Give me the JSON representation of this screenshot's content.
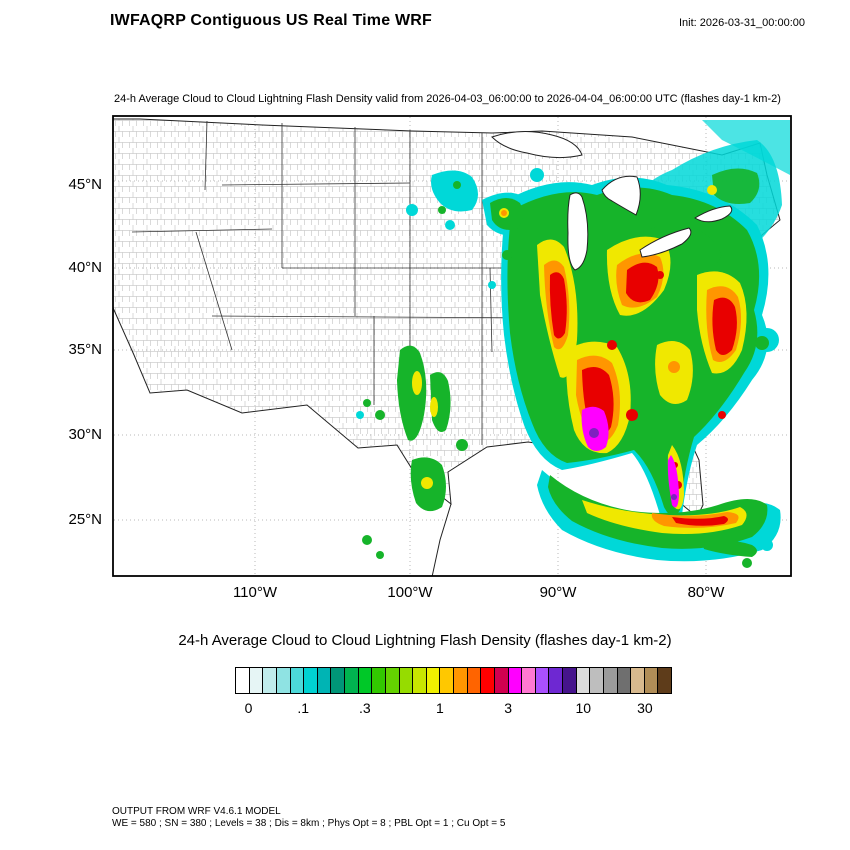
{
  "header": {
    "title": "IWFAQRP Contiguous US Real Time WRF",
    "init": "Init: 2026-03-31_00:00:00"
  },
  "map": {
    "subtitle": "24-h Average Cloud to Cloud Lightning Flash Density valid from 2026-04-03_06:00:00 to 2026-04-04_06:00:00 UTC   (flashes day-1 km-2)",
    "lat_labels": [
      "45°N",
      "40°N",
      "35°N",
      "30°N",
      "25°N"
    ],
    "lon_labels": [
      "110°W",
      "100°W",
      "90°W",
      "80°W"
    ]
  },
  "colorbar": {
    "title": "24-h Average Cloud to Cloud Lightning Flash Density  (flashes day-1 km-2)",
    "colors": [
      "#ffffff",
      "#e6f5f5",
      "#c0ecec",
      "#8fe3e3",
      "#4cd9d9",
      "#00d2d2",
      "#00b4b4",
      "#009678",
      "#00b450",
      "#00c828",
      "#32c800",
      "#64d200",
      "#96dc00",
      "#c8e600",
      "#f0f000",
      "#ffc800",
      "#ff9600",
      "#ff6400",
      "#ff0000",
      "#d20050",
      "#ff00ff",
      "#ff78d2",
      "#aa50ff",
      "#6e28d2",
      "#46148c",
      "#dcdcdc",
      "#bebebe",
      "#9b9b9b",
      "#6f6f6f",
      "#d7b98e",
      "#b08d57",
      "#5e3c1a"
    ],
    "ticks": [
      {
        "label": "0",
        "pos": 0.031
      },
      {
        "label": ".1",
        "pos": 0.156
      },
      {
        "label": ".3",
        "pos": 0.297
      },
      {
        "label": "1",
        "pos": 0.469
      },
      {
        "label": "3",
        "pos": 0.625
      },
      {
        "label": "10",
        "pos": 0.797
      },
      {
        "label": "30",
        "pos": 0.938
      }
    ]
  },
  "footer": {
    "line1": "OUTPUT FROM WRF V4.6.1 MODEL",
    "line2": "WE = 580 ; SN = 380 ; Levels = 38 ; Dis = 8km ; Phys Opt = 8 ; PBL Opt = 1 ; Cu Opt = 5"
  },
  "chart_data": {
    "type": "heatmap",
    "variable": "24-h Average Cloud to Cloud Lightning Flash Density",
    "units": "flashes day-1 km-2",
    "model": "WRF V4.6.1",
    "init_time": "2026-03-31_00:00:00",
    "valid_from": "2026-04-03_06:00:00",
    "valid_to": "2026-04-04_06:00:00 UTC",
    "domain": "Contiguous US (Lambert conformal, county outlines)",
    "lat_ticks": [
      "45°N",
      "40°N",
      "35°N",
      "30°N",
      "25°N"
    ],
    "lon_ticks": [
      "110°W",
      "100°W",
      "90°W",
      "80°W"
    ],
    "scale_levels": [
      0,
      0.1,
      0.3,
      1,
      3,
      10,
      30
    ],
    "grid_info": {
      "WE": 580,
      "SN": 380,
      "Levels": 38,
      "Dis": "8km",
      "Phys Opt": 8,
      "PBL Opt": 1,
      "Cu Opt": 5
    },
    "regions": [
      {
        "area": "Lower Mississippi Valley / central Gulf Coast (LA-MS-AL)",
        "density": "3 to >10, maximum (magenta/purple) near Louisiana-Mississippi coast"
      },
      {
        "area": "Tennessee-Kentucky / Ohio Valley arc",
        "density": "1-10 with red cores"
      },
      {
        "area": "Missouri-Arkansas arc",
        "density": "0.3-3 with narrow red core"
      },
      {
        "area": "Appalachians (WV-VA-NC)",
        "density": "1-10, elongated red band"
      },
      {
        "area": "Georgia / Carolinas / Southeast",
        "density": "0.3-3"
      },
      {
        "area": "Florida peninsula",
        "density": "1-10 with magenta-purple streak along west coast"
      },
      {
        "area": "Gulf of Mexico arc into Florida Straits / Bahamas / Cuba",
        "density": "0.3-10, orange-red band south of Florida"
      },
      {
        "area": "Central and South Texas streaks",
        "density": "0.1-1"
      },
      {
        "area": "Upper Midwest / Great Lakes patches",
        "density": "0-0.3 cyan/green specks"
      },
      {
        "area": "Northeast US and offshore New England",
        "density": "0-1 cyan shield with isolated orange-red spots over PA/NY"
      },
      {
        "area": "Western US (west of ~100°W high plains)",
        "density": "0 (no flashes)"
      }
    ]
  }
}
